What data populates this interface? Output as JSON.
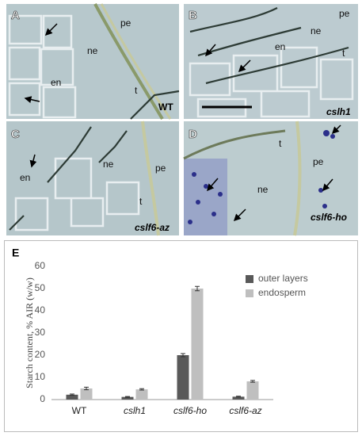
{
  "panels": [
    {
      "letter": "A",
      "labels": [
        "pe",
        "ne",
        "en",
        "t"
      ],
      "caption": "WT"
    },
    {
      "letter": "B",
      "labels": [
        "pe",
        "ne",
        "en",
        "t"
      ],
      "caption": "cslh1"
    },
    {
      "letter": "C",
      "labels": [
        "en",
        "ne",
        "pe",
        "t"
      ],
      "caption": "cslf6-az"
    },
    {
      "letter": "D",
      "labels": [
        "t",
        "pe",
        "ne"
      ],
      "caption": "cslf6-ho"
    }
  ],
  "chart_data": {
    "type": "bar",
    "panel_letter": "E",
    "y_label": "Starch content, % AIR (w/w)",
    "categories": [
      "WT",
      "cslh1",
      "cslf6-ho",
      "cslf6-az"
    ],
    "series": [
      {
        "name": "outer layers",
        "color": "#595959",
        "values": [
          2.2,
          1.2,
          20,
          1.3
        ],
        "errors": [
          0.3,
          0.2,
          0.7,
          0.2
        ]
      },
      {
        "name": "endosperm",
        "color": "#bfbfbf",
        "values": [
          5,
          4.6,
          50,
          8.2
        ],
        "errors": [
          0.6,
          0.3,
          1.0,
          0.4
        ]
      }
    ],
    "ylim": [
      0,
      60
    ],
    "yticks": [
      0,
      10,
      20,
      30,
      40,
      50,
      60
    ],
    "grid": false
  }
}
